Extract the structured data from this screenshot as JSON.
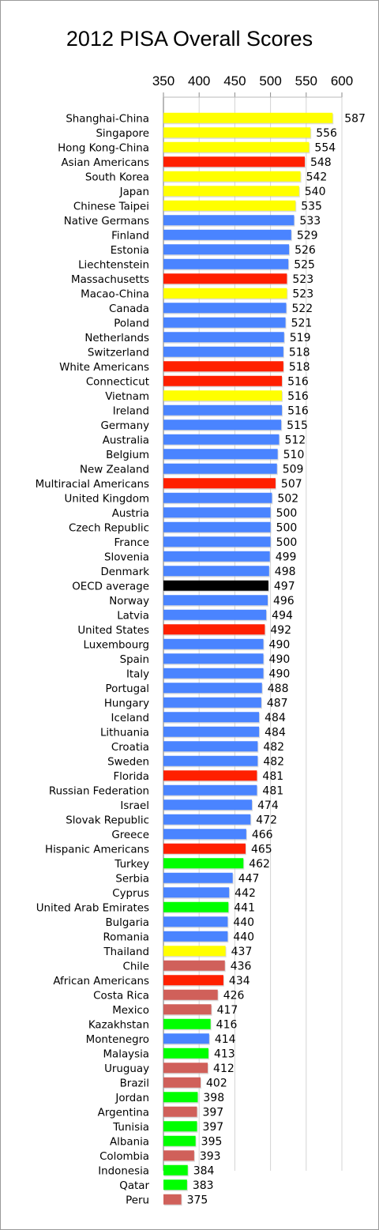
{
  "chart_data": {
    "type": "bar",
    "orientation": "horizontal",
    "title": "2012 PISA Overall Scores",
    "xlim": [
      350,
      600
    ],
    "xticks": [
      350,
      400,
      450,
      500,
      550,
      600
    ],
    "grid": true,
    "legend": "none",
    "colors": {
      "yellow": "#ffff00",
      "red": "#ff2000",
      "blue": "#4a84ff",
      "green": "#00ff00",
      "black": "#000000",
      "rose": "#d0605a"
    },
    "categories": [
      "Shanghai-China",
      "Singapore",
      "Hong Kong-China",
      "Asian Americans",
      "South Korea",
      "Japan",
      "Chinese Taipei",
      "Native Germans",
      "Finland",
      "Estonia",
      "Liechtenstein",
      "Massachusetts",
      "Macao-China",
      "Canada",
      "Poland",
      "Netherlands",
      "Switzerland",
      "White Americans",
      "Connecticut",
      "Vietnam",
      "Ireland",
      "Germany",
      "Australia",
      "Belgium",
      "New Zealand",
      "Multiracial Americans",
      "United Kingdom",
      "Austria",
      "Czech Republic",
      "France",
      "Slovenia",
      "Denmark",
      "OECD average",
      "Norway",
      "Latvia",
      "United States",
      "Luxembourg",
      "Spain",
      "Italy",
      "Portugal",
      "Hungary",
      "Iceland",
      "Lithuania",
      "Croatia",
      "Sweden",
      "Florida",
      "Russian Federation",
      "Israel",
      "Slovak Republic",
      "Greece",
      "Hispanic Americans",
      "Turkey",
      "Serbia",
      "Cyprus",
      "United Arab Emirates",
      "Bulgaria",
      "Romania",
      "Thailand",
      "Chile",
      "African Americans",
      "Costa Rica",
      "Mexico",
      "Kazakhstan",
      "Montenegro",
      "Malaysia",
      "Uruguay",
      "Brazil",
      "Jordan",
      "Argentina",
      "Tunisia",
      "Albania",
      "Colombia",
      "Indonesia",
      "Qatar",
      "Peru"
    ],
    "values": [
      587,
      556,
      554,
      548,
      542,
      540,
      535,
      533,
      529,
      526,
      525,
      523,
      523,
      522,
      521,
      519,
      518,
      518,
      516,
      516,
      516,
      515,
      512,
      510,
      509,
      507,
      502,
      500,
      500,
      500,
      499,
      498,
      497,
      496,
      494,
      492,
      490,
      490,
      490,
      488,
      487,
      484,
      484,
      482,
      482,
      481,
      481,
      474,
      472,
      466,
      465,
      462,
      447,
      442,
      441,
      440,
      440,
      437,
      436,
      434,
      426,
      417,
      416,
      414,
      413,
      412,
      402,
      398,
      397,
      397,
      395,
      393,
      384,
      383,
      375
    ],
    "bar_colors": [
      "yellow",
      "yellow",
      "yellow",
      "red",
      "yellow",
      "yellow",
      "yellow",
      "blue",
      "blue",
      "blue",
      "blue",
      "red",
      "yellow",
      "blue",
      "blue",
      "blue",
      "blue",
      "red",
      "red",
      "yellow",
      "blue",
      "blue",
      "blue",
      "blue",
      "blue",
      "red",
      "blue",
      "blue",
      "blue",
      "blue",
      "blue",
      "blue",
      "black",
      "blue",
      "blue",
      "red",
      "blue",
      "blue",
      "blue",
      "blue",
      "blue",
      "blue",
      "blue",
      "blue",
      "blue",
      "red",
      "blue",
      "blue",
      "blue",
      "blue",
      "red",
      "green",
      "blue",
      "blue",
      "green",
      "blue",
      "blue",
      "yellow",
      "rose",
      "red",
      "rose",
      "rose",
      "green",
      "blue",
      "green",
      "rose",
      "rose",
      "green",
      "rose",
      "green",
      "green",
      "rose",
      "green",
      "green",
      "rose"
    ]
  }
}
